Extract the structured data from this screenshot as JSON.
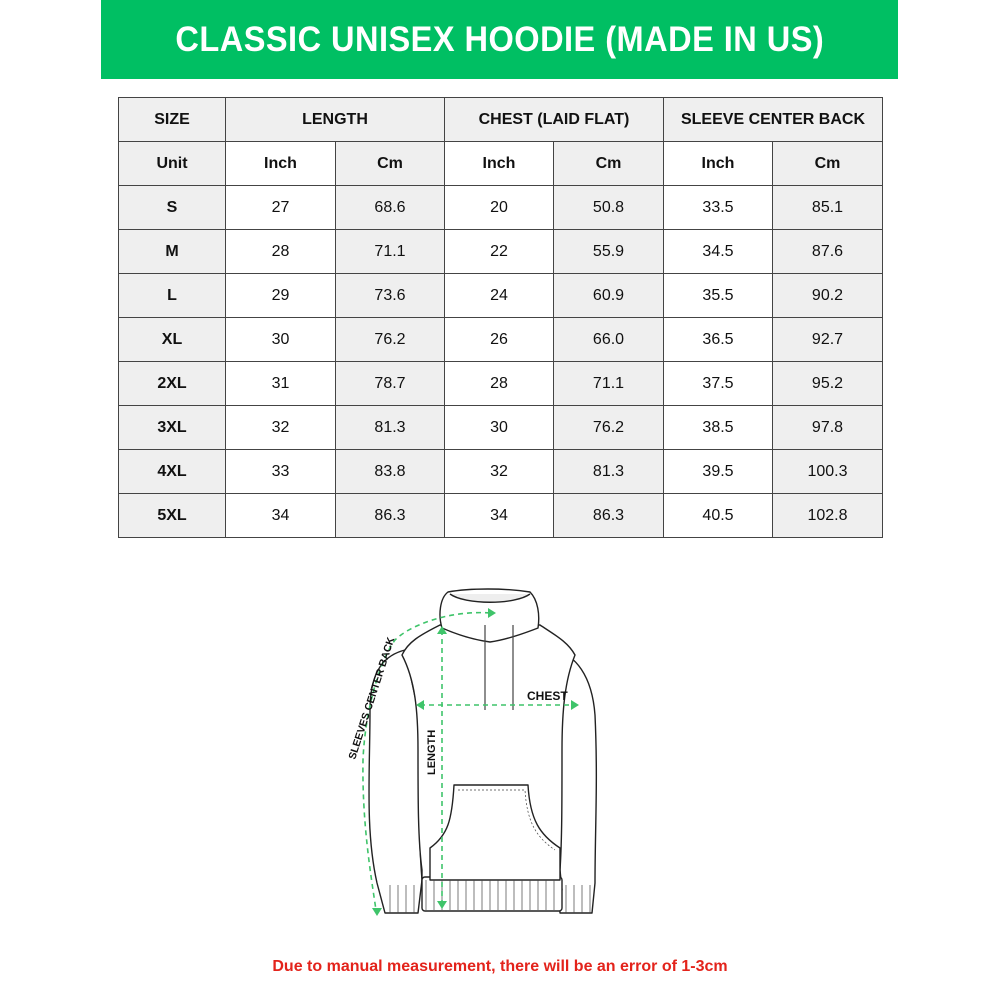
{
  "title": "CLASSIC UNISEX HOODIE (MADE IN US)",
  "colors": {
    "banner": "#00bf63",
    "note": "#e3231b",
    "measure_lines": "#3fc46a"
  },
  "table": {
    "group_headers": [
      "SIZE",
      "LENGTH",
      "CHEST (LAID FLAT)",
      "SLEEVE CENTER BACK"
    ],
    "unit_row": [
      "Unit",
      "Inch",
      "Cm",
      "Inch",
      "Cm",
      "Inch",
      "Cm"
    ],
    "rows": [
      [
        "S",
        "27",
        "68.6",
        "20",
        "50.8",
        "33.5",
        "85.1"
      ],
      [
        "M",
        "28",
        "71.1",
        "22",
        "55.9",
        "34.5",
        "87.6"
      ],
      [
        "L",
        "29",
        "73.6",
        "24",
        "60.9",
        "35.5",
        "90.2"
      ],
      [
        "XL",
        "30",
        "76.2",
        "26",
        "66.0",
        "36.5",
        "92.7"
      ],
      [
        "2XL",
        "31",
        "78.7",
        "28",
        "71.1",
        "37.5",
        "95.2"
      ],
      [
        "3XL",
        "32",
        "81.3",
        "30",
        "76.2",
        "38.5",
        "97.8"
      ],
      [
        "4XL",
        "33",
        "83.8",
        "32",
        "81.3",
        "39.5",
        "100.3"
      ],
      [
        "5XL",
        "34",
        "86.3",
        "34",
        "86.3",
        "40.5",
        "102.8"
      ]
    ]
  },
  "diagram": {
    "chest_label": "CHEST",
    "length_label": "LENGTH",
    "sleeve_label": "SLEEVES CENTER BACK"
  },
  "note": "Due to manual measurement, there will be an error of 1-3cm"
}
